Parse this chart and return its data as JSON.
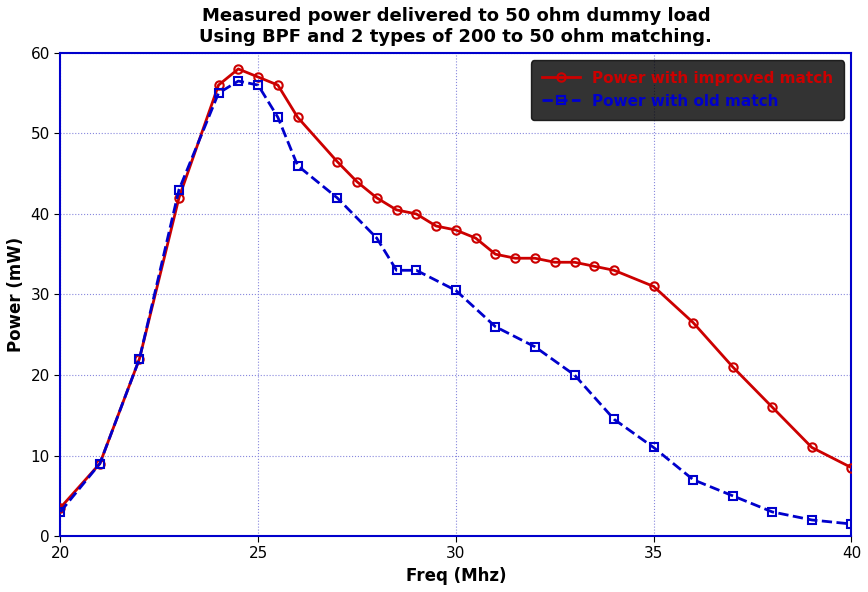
{
  "title_line1": "Measured power delivered to 50 ohm dummy load",
  "title_line2": "Using BPF and 2 types of 200 to 50 ohm matching.",
  "xlabel": "Freq (Mhz)",
  "ylabel": "Power (mW)",
  "xlim": [
    20,
    40
  ],
  "ylim": [
    0,
    60
  ],
  "xticks": [
    20,
    25,
    30,
    35,
    40
  ],
  "yticks": [
    0,
    10,
    20,
    30,
    40,
    50,
    60
  ],
  "improved_x": [
    20,
    21,
    22,
    23,
    24,
    24.5,
    25,
    25.5,
    26,
    27,
    27.5,
    28,
    28.5,
    29,
    29.5,
    30,
    30.5,
    31,
    31.5,
    32,
    32.5,
    33,
    33.5,
    34,
    35,
    36,
    37,
    38,
    39,
    40
  ],
  "improved_y": [
    3.5,
    9,
    22,
    42,
    56,
    58,
    57,
    56,
    52,
    46.5,
    44,
    42,
    40.5,
    40,
    38.5,
    38,
    37,
    35,
    34.5,
    34.5,
    34,
    34,
    33.5,
    33,
    31,
    26.5,
    21,
    16,
    11,
    8.5
  ],
  "old_x": [
    20,
    21,
    22,
    23,
    24,
    24.5,
    25,
    25.5,
    26,
    27,
    28,
    28.5,
    29,
    30,
    31,
    32,
    33,
    34,
    35,
    36,
    37,
    38,
    39,
    40
  ],
  "old_y": [
    3,
    9,
    22,
    43,
    55,
    56.5,
    56,
    52,
    46,
    42,
    37,
    33,
    33,
    30.5,
    26,
    23.5,
    20,
    14.5,
    11,
    7,
    5,
    3,
    2,
    1.5
  ],
  "improved_color": "#cc0000",
  "old_color": "#0000cc",
  "legend_improved": "Power with improved match",
  "legend_old": "Power with old match",
  "background_color": "#ffffff",
  "grid_color": "#4444bb",
  "grid_dotted_color": "#8888dd",
  "title_fontsize": 13,
  "axis_label_fontsize": 12,
  "tick_fontsize": 11,
  "legend_fontsize": 11
}
